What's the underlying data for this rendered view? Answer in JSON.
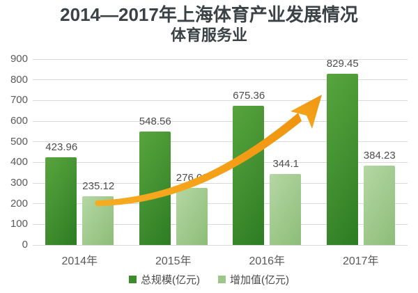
{
  "title": "2014—2017年上海体育产业发展情况",
  "subtitle": "体育服务业",
  "chart_data": {
    "type": "bar",
    "categories": [
      "2014年",
      "2015年",
      "2016年",
      "2017年"
    ],
    "series": [
      {
        "name": "总规模(亿元)",
        "values": [
          423.96,
          548.56,
          675.36,
          829.45
        ],
        "labels": [
          "423.96",
          "548.56",
          "675.36",
          "829.45"
        ],
        "color_top": "#58a53e",
        "color_bottom": "#2d7c23",
        "legend_color": "#3d8c2b"
      },
      {
        "name": "增加值(亿元)",
        "values": [
          235.12,
          276.09,
          344.1,
          384.23
        ],
        "labels": [
          "235.12",
          "276.09",
          "344.1",
          "384.23"
        ],
        "color_top": "#b5d7a4",
        "color_bottom": "#8cbd78",
        "legend_color": "#9dc789"
      }
    ],
    "xlabel": "",
    "ylabel": "",
    "ylim": [
      0,
      900
    ],
    "ytick_interval": 100,
    "yticks": [
      0,
      100,
      200,
      300,
      400,
      500,
      600,
      700,
      800,
      900
    ],
    "grid": "horizontal",
    "legend_position": "bottom",
    "annotation": "orange curved growth arrow from 2014 toward 2017"
  },
  "colors": {
    "grid": "#d9d9d9",
    "axis_text": "#595959",
    "value_text": "#4d4d4d",
    "title_text": "#3b4245",
    "arrow": "#f5a01d",
    "background": "#ffffff"
  }
}
